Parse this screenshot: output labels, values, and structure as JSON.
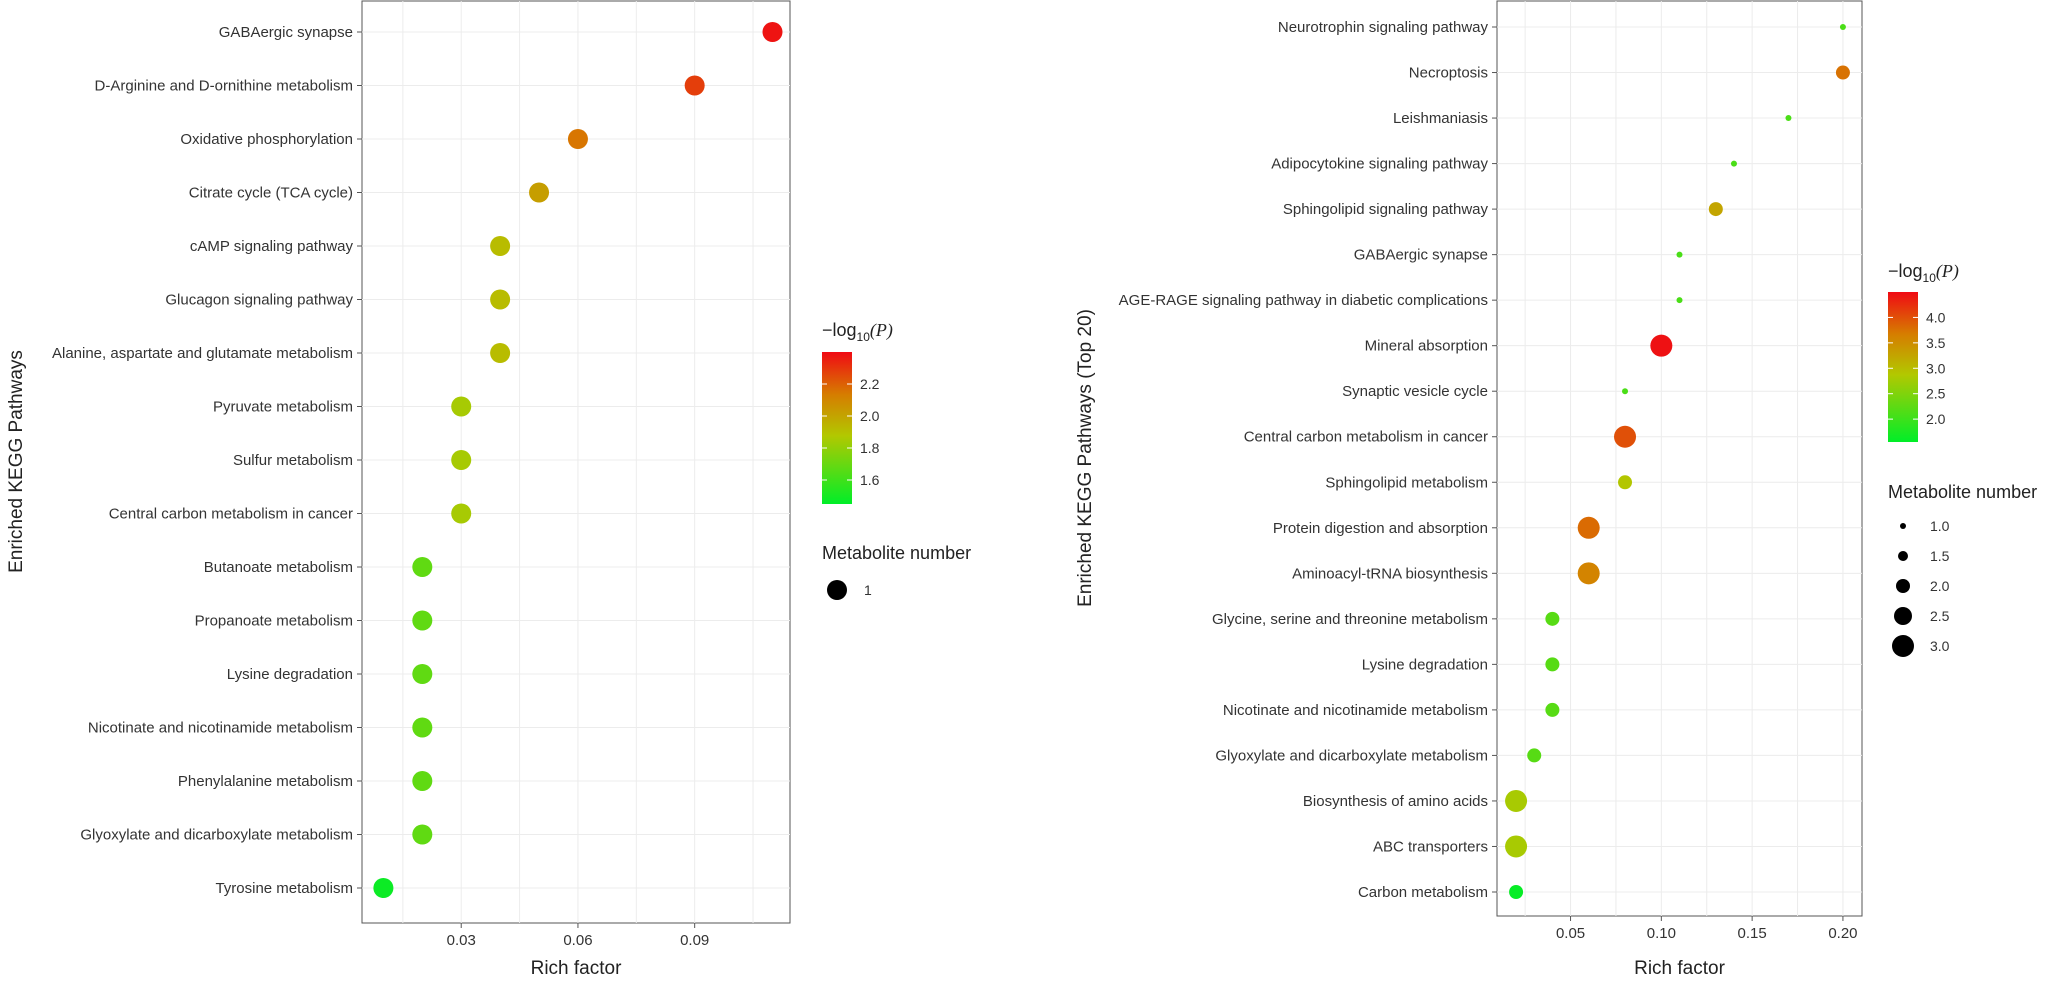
{
  "chart_data": [
    {
      "type": "scatter",
      "ylabel": "Enriched KEGG Pathways",
      "xlabel": "Rich factor",
      "xlim": [
        0.0045,
        0.1145
      ],
      "x_ticks": [
        0.03,
        0.06,
        0.09
      ],
      "x_tick_labels": [
        "0.03",
        "0.06",
        "0.09"
      ],
      "grid": true,
      "categories": [
        "GABAergic synapse",
        "D-Arginine and D-ornithine metabolism",
        "Oxidative phosphorylation",
        "Citrate cycle (TCA cycle)",
        "cAMP signaling pathway",
        "Glucagon signaling pathway",
        "Alanine, aspartate and glutamate metabolism",
        "Pyruvate metabolism",
        "Sulfur metabolism",
        "Central carbon metabolism in cancer",
        "Butanoate metabolism",
        "Propanoate metabolism",
        "Lysine degradation",
        "Nicotinate and nicotinamide metabolism",
        "Phenylalanine metabolism",
        "Glyoxylate and dicarboxylate metabolism",
        "Tyrosine metabolism"
      ],
      "rich_factor": [
        0.11,
        0.09,
        0.06,
        0.05,
        0.04,
        0.04,
        0.04,
        0.03,
        0.03,
        0.03,
        0.02,
        0.02,
        0.02,
        0.02,
        0.02,
        0.02,
        0.01
      ],
      "neg_log10_p": [
        2.38,
        2.28,
        2.15,
        2.02,
        1.92,
        1.92,
        1.92,
        1.85,
        1.85,
        1.85,
        1.68,
        1.68,
        1.68,
        1.68,
        1.68,
        1.68,
        1.48
      ],
      "metabolite_number": [
        1,
        1,
        1,
        1,
        1,
        1,
        1,
        1,
        1,
        1,
        1,
        1,
        1,
        1,
        1,
        1,
        1
      ],
      "color_legend": {
        "title_prefix": "−log",
        "title_sub": "10",
        "title_arg": "(P)",
        "range": [
          1.45,
          2.4
        ],
        "ticks": [
          "1.6",
          "1.8",
          "2.0",
          "2.2"
        ]
      },
      "size_legend": {
        "title": "Metabolite number",
        "labels": [
          "1"
        ]
      }
    },
    {
      "type": "scatter",
      "ylabel": "Enriched KEGG Pathways (Top 20)",
      "xlabel": "Rich factor",
      "xlim": [
        0.0095,
        0.2105
      ],
      "x_ticks": [
        0.05,
        0.1,
        0.15,
        0.2
      ],
      "x_tick_labels": [
        "0.05",
        "0.10",
        "0.15",
        "0.20"
      ],
      "grid": true,
      "categories": [
        "Neurotrophin signaling pathway",
        "Necroptosis",
        "Leishmaniasis",
        "Adipocytokine signaling pathway",
        "Sphingolipid signaling pathway",
        "GABAergic synapse",
        "AGE-RAGE signaling pathway in diabetic complications",
        "Mineral absorption",
        "Synaptic vesicle cycle",
        "Central carbon metabolism in cancer",
        "Sphingolipid metabolism",
        "Protein digestion and absorption",
        "Aminoacyl-tRNA biosynthesis",
        "Glycine, serine and threonine metabolism",
        "Lysine degradation",
        "Nicotinate and nicotinamide metabolism",
        "Glyoxylate and dicarboxylate metabolism",
        "Biosynthesis of amino acids",
        "ABC transporters",
        "Carbon metabolism"
      ],
      "rich_factor": [
        0.2,
        0.2,
        0.17,
        0.14,
        0.13,
        0.11,
        0.11,
        0.1,
        0.08,
        0.08,
        0.08,
        0.06,
        0.06,
        0.04,
        0.04,
        0.04,
        0.03,
        0.02,
        0.02,
        0.02
      ],
      "neg_log10_p": [
        2.1,
        3.75,
        2.1,
        2.1,
        3.25,
        2.1,
        2.1,
        4.45,
        2.1,
        4.0,
        2.9,
        3.8,
        3.6,
        2.2,
        2.2,
        2.2,
        2.2,
        2.8,
        2.8,
        1.6
      ],
      "metabolite_number": [
        1,
        2,
        1,
        1,
        2,
        1,
        1,
        3,
        1,
        3,
        2,
        3,
        3,
        2,
        2,
        2,
        2,
        3,
        3,
        2
      ],
      "color_legend": {
        "title_prefix": "−log",
        "title_sub": "10",
        "title_arg": "(P)",
        "range": [
          1.55,
          4.5
        ],
        "ticks": [
          "2.0",
          "2.5",
          "3.0",
          "3.5",
          "4.0"
        ]
      },
      "size_legend": {
        "title": "Metabolite number",
        "labels": [
          "1.0",
          "1.5",
          "2.0",
          "2.5",
          "3.0"
        ]
      }
    }
  ]
}
